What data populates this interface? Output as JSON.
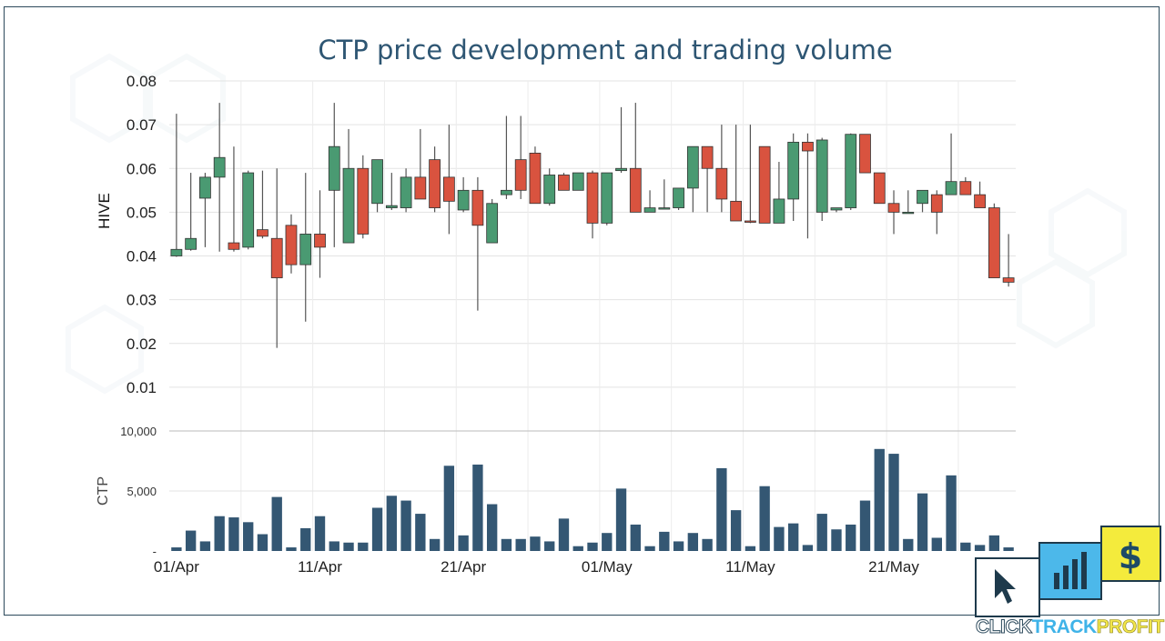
{
  "title": "CTP price development and trading volume",
  "logo": {
    "part1": "CLICK",
    "part2": "TRACK",
    "part3": "PROFIT",
    "dollar": "$"
  },
  "colors": {
    "up": "#4a9a72",
    "down": "#d9533f",
    "volume": "#345773",
    "title": "#2e5673"
  },
  "chart_data": [
    {
      "type": "candlestick",
      "ylabel": "HIVE",
      "ylim": [
        0,
        0.08
      ],
      "yticks": [
        "0.01",
        "0.02",
        "0.03",
        "0.04",
        "0.05",
        "0.06",
        "0.07",
        "0.08"
      ],
      "xticks": [
        "01/Apr",
        "11/Apr",
        "21/Apr",
        "01/May",
        "11/May",
        "21/May"
      ],
      "grid": true,
      "candles": [
        [
          0.04,
          0.0725,
          0.0398,
          0.0415
        ],
        [
          0.0415,
          0.059,
          0.0412,
          0.044
        ],
        [
          0.0532,
          0.059,
          0.042,
          0.058
        ],
        [
          0.058,
          0.075,
          0.041,
          0.0625
        ],
        [
          0.043,
          0.065,
          0.041,
          0.0415
        ],
        [
          0.042,
          0.0595,
          0.0415,
          0.059
        ],
        [
          0.046,
          0.0595,
          0.044,
          0.0445
        ],
        [
          0.044,
          0.06,
          0.019,
          0.035
        ],
        [
          0.047,
          0.0495,
          0.036,
          0.038
        ],
        [
          0.038,
          0.059,
          0.025,
          0.045
        ],
        [
          0.045,
          0.055,
          0.035,
          0.042
        ],
        [
          0.055,
          0.075,
          0.042,
          0.065
        ],
        [
          0.043,
          0.069,
          0.043,
          0.06
        ],
        [
          0.06,
          0.063,
          0.044,
          0.045
        ],
        [
          0.052,
          0.062,
          0.05,
          0.062
        ],
        [
          0.051,
          0.059,
          0.0505,
          0.0515
        ],
        [
          0.051,
          0.06,
          0.05,
          0.058
        ],
        [
          0.058,
          0.069,
          0.053,
          0.053
        ],
        [
          0.062,
          0.065,
          0.05,
          0.051
        ],
        [
          0.058,
          0.07,
          0.045,
          0.0525
        ],
        [
          0.0505,
          0.058,
          0.05,
          0.055
        ],
        [
          0.055,
          0.058,
          0.0275,
          0.047
        ],
        [
          0.043,
          0.053,
          0.043,
          0.052
        ],
        [
          0.054,
          0.072,
          0.053,
          0.055
        ],
        [
          0.062,
          0.072,
          0.053,
          0.055
        ],
        [
          0.0635,
          0.065,
          0.0525,
          0.052
        ],
        [
          0.052,
          0.06,
          0.0515,
          0.0585
        ],
        [
          0.0585,
          0.059,
          0.055,
          0.055
        ],
        [
          0.055,
          0.059,
          0.055,
          0.059
        ],
        [
          0.059,
          0.0595,
          0.044,
          0.0475
        ],
        [
          0.0475,
          0.059,
          0.047,
          0.059
        ],
        [
          0.0595,
          0.074,
          0.059,
          0.06
        ],
        [
          0.06,
          0.075,
          0.05,
          0.05
        ],
        [
          0.05,
          0.055,
          0.05,
          0.051
        ],
        [
          0.051,
          0.0575,
          0.051,
          0.051
        ],
        [
          0.051,
          0.0555,
          0.0505,
          0.0555
        ],
        [
          0.0555,
          0.065,
          0.05,
          0.065
        ],
        [
          0.065,
          0.065,
          0.05,
          0.06
        ],
        [
          0.06,
          0.07,
          0.05,
          0.053
        ],
        [
          0.0525,
          0.07,
          0.048,
          0.048
        ],
        [
          0.048,
          0.07,
          0.0475,
          0.0478
        ],
        [
          0.065,
          0.065,
          0.0475,
          0.0475
        ],
        [
          0.0475,
          0.0615,
          0.0475,
          0.053
        ],
        [
          0.053,
          0.068,
          0.048,
          0.066
        ],
        [
          0.066,
          0.068,
          0.044,
          0.064
        ],
        [
          0.05,
          0.067,
          0.048,
          0.0665
        ],
        [
          0.0505,
          0.051,
          0.05,
          0.051
        ],
        [
          0.051,
          0.068,
          0.0505,
          0.0678
        ],
        [
          0.0678,
          0.0678,
          0.059,
          0.059
        ],
        [
          0.059,
          0.059,
          0.052,
          0.052
        ],
        [
          0.052,
          0.055,
          0.045,
          0.05
        ],
        [
          0.05,
          0.055,
          0.05,
          0.05
        ],
        [
          0.052,
          0.055,
          0.05,
          0.055
        ],
        [
          0.054,
          0.055,
          0.045,
          0.05
        ],
        [
          0.054,
          0.068,
          0.054,
          0.057
        ],
        [
          0.057,
          0.058,
          0.054,
          0.054
        ],
        [
          0.054,
          0.057,
          0.051,
          0.051
        ],
        [
          0.051,
          0.052,
          0.035,
          0.035
        ],
        [
          0.035,
          0.045,
          0.033,
          0.034
        ]
      ]
    },
    {
      "type": "bar",
      "ylabel": "CTP",
      "ylim": [
        0,
        10000
      ],
      "yticks": [
        "-",
        "5,000",
        "10,000"
      ],
      "values": [
        300,
        1700,
        800,
        2900,
        2800,
        2400,
        1400,
        4500,
        300,
        1900,
        2900,
        800,
        700,
        700,
        3600,
        4600,
        4200,
        3100,
        1000,
        7100,
        1300,
        7200,
        3900,
        1000,
        1000,
        1200,
        800,
        2700,
        400,
        700,
        1500,
        5200,
        2200,
        400,
        1600,
        800,
        1500,
        1000,
        6900,
        3400,
        400,
        5400,
        2000,
        2300,
        500,
        3100,
        1800,
        2200,
        4200,
        8500,
        8100,
        1000,
        4800,
        1100,
        6300,
        700,
        500,
        1300,
        300
      ]
    }
  ]
}
